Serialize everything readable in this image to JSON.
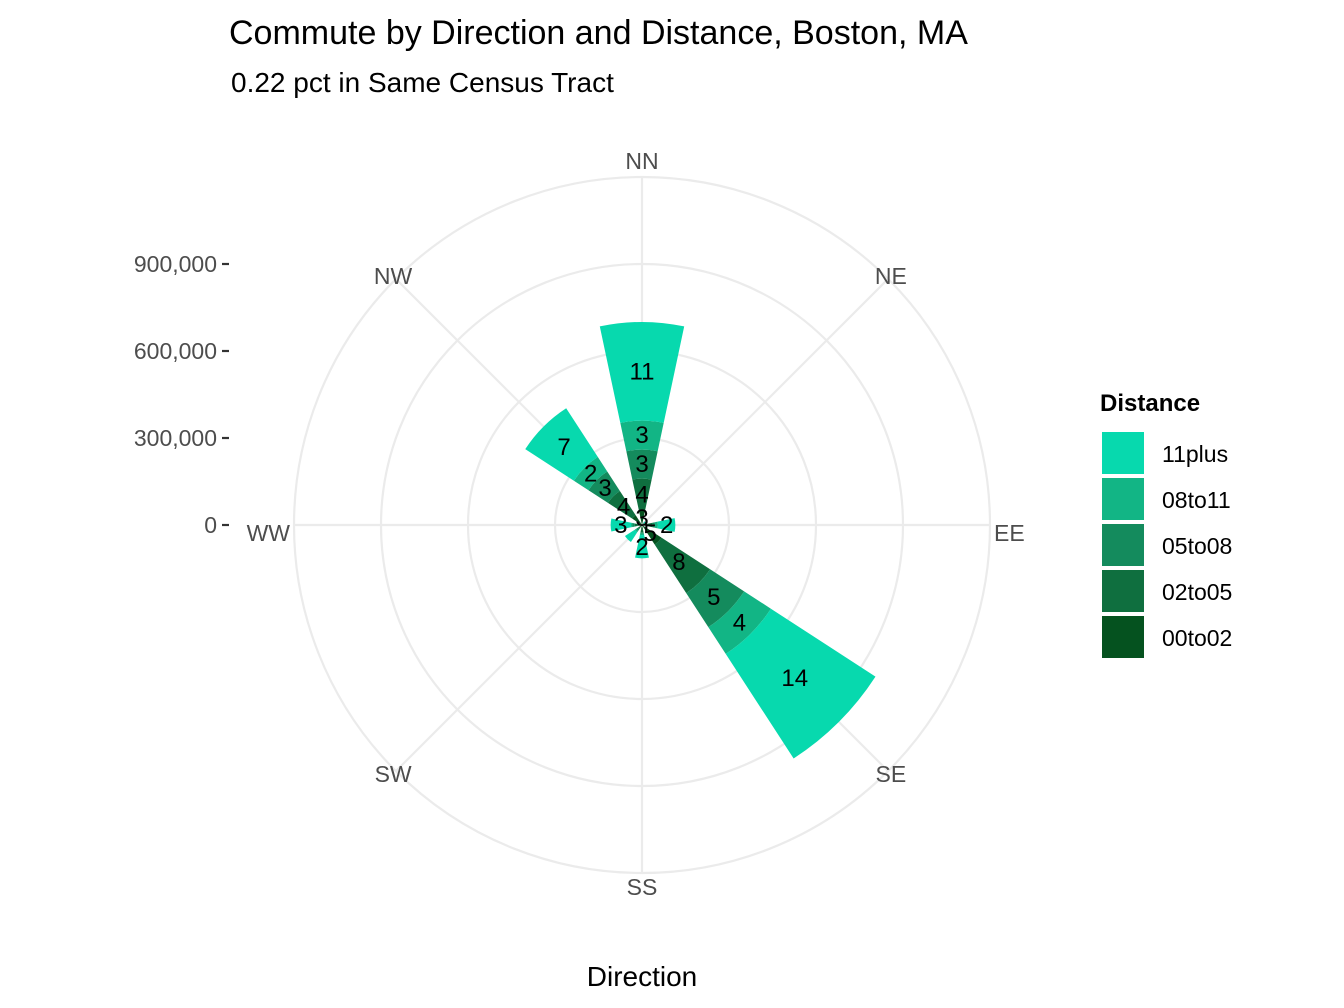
{
  "chart_data": {
    "type": "polar-stacked-bar",
    "title": "Commute by Direction and Distance, Boston, MA",
    "subtitle": "0.22 pct in Same Census Tract",
    "xlabel": "Direction",
    "directions": [
      "NN",
      "NE",
      "EE",
      "SE",
      "SS",
      "SW",
      "WW",
      "NW"
    ],
    "radial_axis": {
      "ticks": [
        0,
        300000,
        600000,
        900000
      ],
      "tick_labels": [
        "0",
        "300,000",
        "600,000",
        "900,000"
      ],
      "max": 1200000
    },
    "grid": true,
    "legend": {
      "title": "Distance",
      "position": "right",
      "entries": [
        {
          "name": "11plus",
          "color": "#07D9AE"
        },
        {
          "name": "08to11",
          "color": "#12B585"
        },
        {
          "name": "05to08",
          "color": "#148B5D"
        },
        {
          "name": "02to05",
          "color": "#0F6F3F"
        },
        {
          "name": "00to02",
          "color": "#05521F"
        }
      ]
    },
    "series": [
      {
        "name": "00to02",
        "values": [
          50000,
          3000,
          20000,
          80000,
          15000,
          8000,
          15000,
          40000
        ]
      },
      {
        "name": "02to05",
        "values": [
          110000,
          3000,
          15000,
          200000,
          10000,
          8000,
          10000,
          100000
        ]
      },
      {
        "name": "05to08",
        "values": [
          100000,
          2000,
          10000,
          140000,
          5000,
          8000,
          8000,
          80000
        ]
      },
      {
        "name": "08to11",
        "values": [
          100000,
          2000,
          10000,
          110000,
          5000,
          6000,
          5000,
          60000
        ]
      },
      {
        "name": "11plus",
        "values": [
          340000,
          5000,
          60000,
          430000,
          80000,
          40000,
          70000,
          200000
        ]
      }
    ],
    "bar_labels": [
      {
        "direction": "NN",
        "series": "00to02",
        "text": "3"
      },
      {
        "direction": "NN",
        "series": "02to05",
        "text": "4"
      },
      {
        "direction": "NN",
        "series": "05to08",
        "text": "3"
      },
      {
        "direction": "NN",
        "series": "08to11",
        "text": "3"
      },
      {
        "direction": "NN",
        "series": "11plus",
        "text": "11"
      },
      {
        "direction": "NW",
        "series": "02to05",
        "text": "4"
      },
      {
        "direction": "NW",
        "series": "05to08",
        "text": "3"
      },
      {
        "direction": "NW",
        "series": "08to11",
        "text": "2"
      },
      {
        "direction": "NW",
        "series": "11plus",
        "text": "7"
      },
      {
        "direction": "WW",
        "series": "11plus",
        "text": "3"
      },
      {
        "direction": "EE",
        "series": "11plus",
        "text": "2"
      },
      {
        "direction": "SE",
        "series": "00to02",
        "text": "5"
      },
      {
        "direction": "SE",
        "series": "02to05",
        "text": "8"
      },
      {
        "direction": "SE",
        "series": "05to08",
        "text": "5"
      },
      {
        "direction": "SE",
        "series": "08to11",
        "text": "4"
      },
      {
        "direction": "SE",
        "series": "11plus",
        "text": "14"
      },
      {
        "direction": "SS",
        "series": "11plus",
        "text": "2"
      }
    ]
  }
}
